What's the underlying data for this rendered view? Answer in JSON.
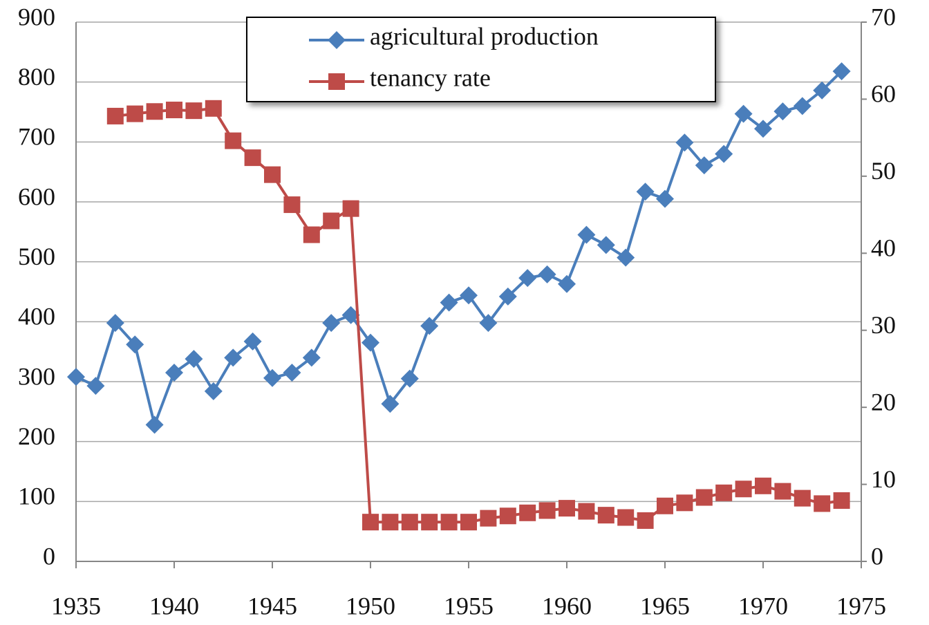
{
  "chart_data": {
    "type": "line",
    "x": [
      1935,
      1936,
      1937,
      1938,
      1939,
      1940,
      1941,
      1942,
      1943,
      1944,
      1945,
      1946,
      1947,
      1948,
      1949,
      1950,
      1951,
      1952,
      1953,
      1954,
      1955,
      1956,
      1957,
      1958,
      1959,
      1960,
      1961,
      1962,
      1963,
      1964,
      1965,
      1966,
      1967,
      1968,
      1969,
      1970,
      1971,
      1972,
      1973,
      1974
    ],
    "series": [
      {
        "name": "agricultural production",
        "color": "#4a7ebb",
        "marker": "diamond",
        "values": [
          308,
          293,
          398,
          362,
          228,
          315,
          338,
          284,
          340,
          367,
          306,
          315,
          340,
          398,
          411,
          365,
          263,
          305,
          393,
          432,
          444,
          398,
          442,
          473,
          479,
          463,
          545,
          528,
          507,
          617,
          605,
          699,
          661,
          680,
          747,
          722,
          751,
          760,
          786,
          818
        ]
      },
      {
        "name": "tenancy rate",
        "color": "#be4b48",
        "marker": "square",
        "axis": "y2",
        "values": [
          null,
          null,
          57.8,
          58.1,
          58.4,
          58.6,
          58.5,
          58.8,
          54.6,
          52.4,
          50.2,
          46.3,
          42.4,
          44.2,
          45.8,
          5.1,
          5.1,
          5.1,
          5.1,
          5.1,
          5.1,
          5.6,
          5.9,
          6.3,
          6.6,
          6.9,
          6.5,
          6.0,
          5.7,
          5.3,
          7.2,
          7.6,
          8.3,
          8.9,
          9.4,
          9.8,
          9.1,
          8.2,
          7.5,
          7.9
        ]
      }
    ],
    "xlim": [
      1935,
      1975
    ],
    "xticks": [
      1935,
      1940,
      1945,
      1950,
      1955,
      1960,
      1965,
      1970,
      1975
    ],
    "ylim": [
      0,
      900
    ],
    "yticks": [
      0,
      100,
      200,
      300,
      400,
      500,
      600,
      700,
      800,
      900
    ],
    "y2lim": [
      0,
      70
    ],
    "y2ticks": [
      0,
      10,
      20,
      30,
      40,
      50,
      60,
      70
    ],
    "grid": true,
    "legend": "top"
  }
}
